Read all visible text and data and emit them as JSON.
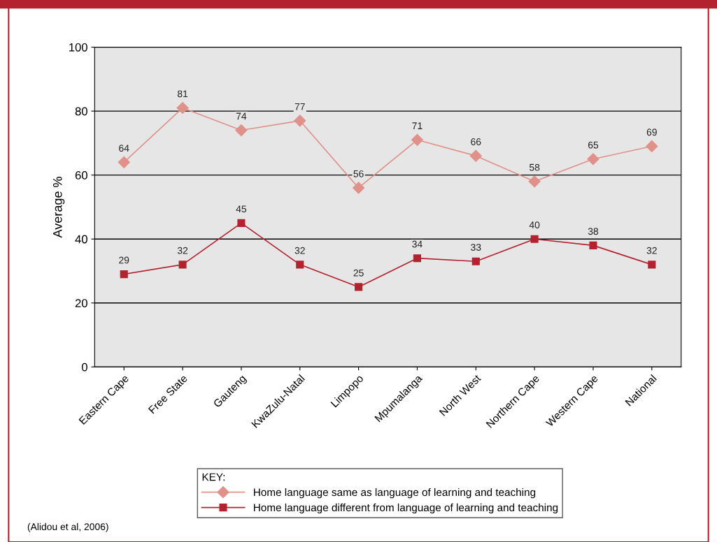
{
  "chart_data": {
    "type": "line",
    "ylabel": "Average %",
    "categories": [
      "Eastern Cape",
      "Free State",
      "Gauteng",
      "KwaZulu-Natal",
      "Limpopo",
      "Mpumalanga",
      "North West",
      "Northern Cape",
      "Western Cape",
      "National"
    ],
    "series": [
      {
        "name": "Home language same as language of learning and teaching",
        "color": "#e0918a",
        "marker": "diamond",
        "values": [
          64,
          81,
          74,
          77,
          56,
          71,
          66,
          58,
          65,
          69
        ]
      },
      {
        "name": "Home language different from language of learning and teaching",
        "color": "#b5222f",
        "marker": "square",
        "values": [
          29,
          32,
          45,
          32,
          25,
          34,
          33,
          40,
          38,
          32
        ]
      }
    ],
    "ylim": [
      0,
      100
    ],
    "yticks": [
      0,
      20,
      40,
      60,
      80,
      100
    ],
    "grid": "y",
    "legend": "bottom",
    "legend_title": "KEY:",
    "data_labels": true,
    "annotations": [
      "(Alidou et al, 2006)"
    ]
  }
}
